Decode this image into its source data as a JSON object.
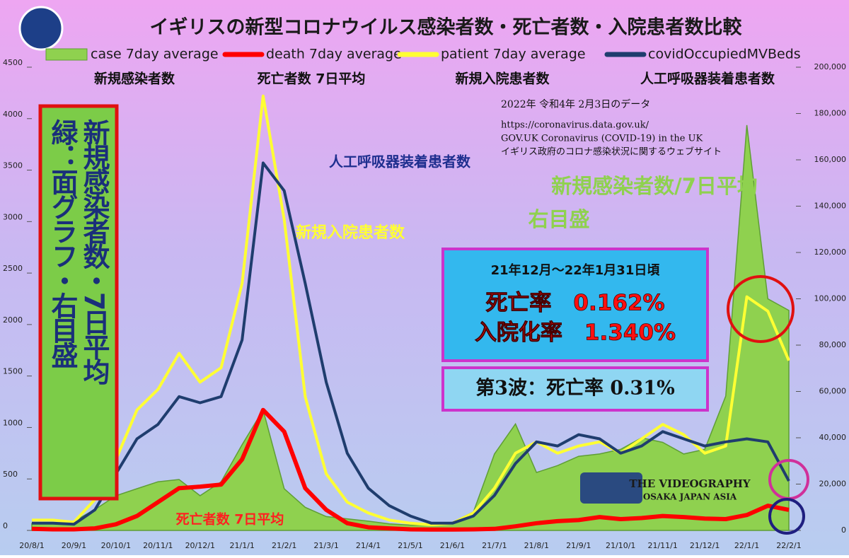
{
  "chart_data": {
    "type": "line",
    "title": "イギリスの新型コロナウイルス感染者数・死亡者数・入院患者数比較",
    "categories": [
      "20/8/1",
      null,
      "20/9/1",
      null,
      "20/10/1",
      null,
      "20/11/1",
      null,
      "20/12/1",
      null,
      "21/1/1",
      null,
      "21/2/1",
      null,
      "21/3/1",
      null,
      "21/4/1",
      null,
      "21/5/1",
      null,
      "21/6/1",
      null,
      "21/7/1",
      null,
      "21/8/1",
      null,
      "21/9/1",
      null,
      "21/10/1",
      null,
      "21/11/1",
      null,
      "21/12/1",
      null,
      "22/1/1",
      null,
      "22/2/1"
    ],
    "series": [
      {
        "name": "case 7day average",
        "color": "#8fd14f",
        "kind": "area",
        "axis": "y2",
        "values": [
          3000,
          3000,
          4000,
          9000,
          15000,
          18000,
          21000,
          22000,
          15000,
          21000,
          37000,
          52000,
          18000,
          10000,
          6000,
          5000,
          4000,
          2800,
          2300,
          2300,
          3500,
          8000,
          33000,
          46000,
          25000,
          28000,
          32000,
          33000,
          35000,
          40000,
          38000,
          33000,
          35000,
          58000,
          175000,
          100000,
          95000
        ]
      },
      {
        "name": "death 7day average",
        "color": "#ff0000",
        "kind": "line",
        "values": [
          15,
          10,
          10,
          20,
          60,
          140,
          275,
          410,
          425,
          445,
          690,
          1170,
          960,
          410,
          200,
          70,
          30,
          20,
          10,
          8,
          8,
          10,
          15,
          40,
          70,
          90,
          100,
          130,
          110,
          120,
          140,
          130,
          115,
          110,
          150,
          240,
          200
        ]
      },
      {
        "name": "patient 7day average",
        "color": "#ffff33",
        "kind": "line",
        "values": [
          100,
          100,
          80,
          300,
          690,
          1170,
          1370,
          1720,
          1440,
          1580,
          2400,
          4220,
          3020,
          1300,
          550,
          275,
          170,
          100,
          70,
          55,
          70,
          170,
          410,
          750,
          860,
          750,
          820,
          860,
          750,
          890,
          1030,
          930,
          750,
          820,
          2270,
          2130,
          1650
        ]
      },
      {
        "name": "covidOccupiedMVBeds",
        "color": "#1f3d6e",
        "kind": "line",
        "values": [
          70,
          70,
          60,
          200,
          550,
          890,
          1030,
          1300,
          1240,
          1300,
          1850,
          3570,
          3300,
          2400,
          1440,
          750,
          410,
          240,
          140,
          70,
          70,
          140,
          340,
          650,
          860,
          820,
          930,
          890,
          750,
          820,
          960,
          890,
          820,
          860,
          890,
          860,
          480
        ]
      }
    ],
    "ylim": [
      0,
      4500
    ],
    "yticks": [
      0,
      500,
      1000,
      1500,
      2000,
      2500,
      3000,
      3500,
      4000,
      4500
    ],
    "y2lim": [
      0,
      200000
    ],
    "y2ticks": [
      0,
      {
        "value": 20000,
        "label": "20,000"
      },
      {
        "value": 40000,
        "label": "40,000"
      },
      {
        "value": 60000,
        "label": "60,000"
      },
      {
        "value": 80000,
        "label": "80,000"
      },
      {
        "value": 100000,
        "label": "100,000"
      },
      {
        "value": 120000,
        "label": "120,000"
      },
      {
        "value": 140000,
        "label": "140,000"
      },
      {
        "value": 160000,
        "label": "160,000"
      },
      {
        "value": 180000,
        "label": "180,000"
      },
      {
        "value": 200000,
        "label": "200,000"
      }
    ],
    "annotations": [
      "新規感染者数",
      "死亡者数 7日平均",
      "新規入院患者数",
      "人工呼吸器装着患者数",
      "2022年 令和4年 2月3日のデータ",
      "https://coronavirus.data.gov.uk/",
      "GOV.UK  Coronavirus (COVID-19) in the UK",
      "イギリス政府のコロナ感染状況に関するウェブサイト",
      "人工呼吸器装着患者数",
      "新規感染者数/7日平均",
      "右目盛",
      "新規入院患者数",
      "死亡者数 7日平均",
      "21年12月〜22年1月31日頃",
      "死亡率　0.162%",
      "入院化率　1.340%",
      "第3波：死亡率 0.31%",
      "新規感染者数・7日平均",
      "緑：面グラフ・右目盛",
      "THE VIDEOGRAPHY",
      "OSAKA JAPAN ASIA"
    ]
  }
}
